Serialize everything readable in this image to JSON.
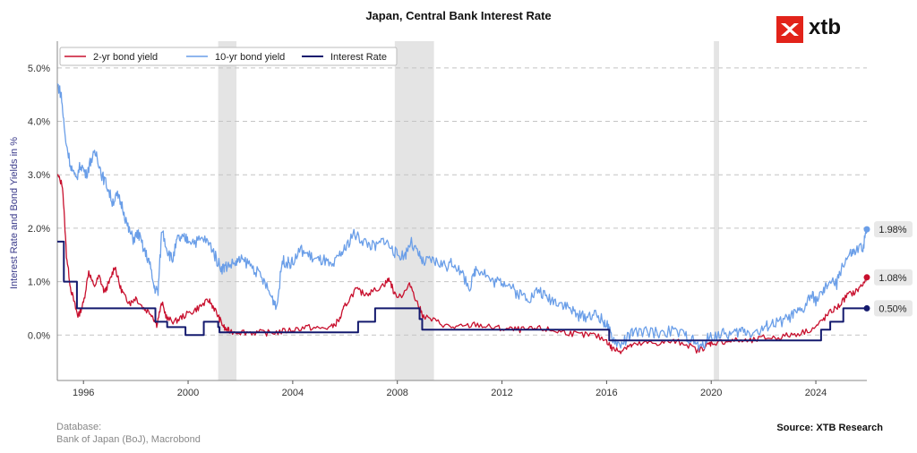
{
  "brand": {
    "logo_text": "xtb",
    "accent": "#e2231a"
  },
  "footer": {
    "db_label": "Database:",
    "db_sources": "Bank of Japan (BoJ), Macrobond",
    "source": "Source: XTB Research"
  },
  "chart_data": {
    "type": "line",
    "title": "Japan, Central Bank Interest Rate",
    "xlabel": "",
    "ylabel": "Interest Rate and Bond Yields in %",
    "xlim": [
      1995.0,
      2025.95
    ],
    "ylim": [
      -0.85,
      5.5
    ],
    "x_ticks": [
      1996,
      2000,
      2004,
      2008,
      2012,
      2016,
      2020,
      2024
    ],
    "y_ticks": [
      0,
      1,
      2,
      3,
      4,
      5
    ],
    "y_tick_labels": [
      "0.0%",
      "1.0%",
      "2.0%",
      "3.0%",
      "4.0%",
      "5.0%"
    ],
    "grid": "horizontal dashed",
    "legend": "top-left",
    "recessions": [
      [
        2001.15,
        2001.85
      ],
      [
        2007.9,
        2009.4
      ],
      [
        2020.1,
        2020.3
      ]
    ],
    "series": [
      {
        "name": "2-yr bond yield",
        "color": "#c8102e",
        "end_label": "1.08%",
        "points": [
          [
            1995.0,
            3.0
          ],
          [
            1995.2,
            2.8
          ],
          [
            1995.35,
            1.5
          ],
          [
            1995.5,
            0.9
          ],
          [
            1995.7,
            0.5
          ],
          [
            1995.8,
            0.35
          ],
          [
            1996.0,
            0.6
          ],
          [
            1996.2,
            1.2
          ],
          [
            1996.4,
            0.9
          ],
          [
            1996.6,
            1.1
          ],
          [
            1996.8,
            0.8
          ],
          [
            1997.0,
            1.0
          ],
          [
            1997.2,
            1.3
          ],
          [
            1997.4,
            0.9
          ],
          [
            1997.6,
            0.7
          ],
          [
            1997.8,
            0.6
          ],
          [
            1998.0,
            0.7
          ],
          [
            1998.3,
            0.5
          ],
          [
            1998.6,
            0.4
          ],
          [
            1998.8,
            0.2
          ],
          [
            1999.0,
            0.6
          ],
          [
            1999.2,
            0.3
          ],
          [
            1999.5,
            0.25
          ],
          [
            1999.8,
            0.35
          ],
          [
            2000.2,
            0.45
          ],
          [
            2000.5,
            0.55
          ],
          [
            2000.8,
            0.65
          ],
          [
            2001.0,
            0.5
          ],
          [
            2001.2,
            0.3
          ],
          [
            2001.4,
            0.12
          ],
          [
            2001.6,
            0.07
          ],
          [
            2002.0,
            0.06
          ],
          [
            2002.5,
            0.05
          ],
          [
            2003.0,
            0.04
          ],
          [
            2003.5,
            0.06
          ],
          [
            2004.0,
            0.1
          ],
          [
            2004.5,
            0.15
          ],
          [
            2005.0,
            0.12
          ],
          [
            2005.5,
            0.15
          ],
          [
            2005.8,
            0.3
          ],
          [
            2006.0,
            0.55
          ],
          [
            2006.4,
            0.85
          ],
          [
            2006.7,
            0.78
          ],
          [
            2007.0,
            0.8
          ],
          [
            2007.5,
            0.95
          ],
          [
            2007.7,
            1.05
          ],
          [
            2007.9,
            0.75
          ],
          [
            2008.2,
            0.75
          ],
          [
            2008.5,
            0.95
          ],
          [
            2008.8,
            0.55
          ],
          [
            2009.0,
            0.35
          ],
          [
            2009.5,
            0.25
          ],
          [
            2010.0,
            0.15
          ],
          [
            2010.5,
            0.15
          ],
          [
            2011.0,
            0.2
          ],
          [
            2011.5,
            0.15
          ],
          [
            2012.0,
            0.12
          ],
          [
            2012.5,
            0.1
          ],
          [
            2013.0,
            0.1
          ],
          [
            2013.5,
            0.12
          ],
          [
            2014.0,
            0.08
          ],
          [
            2014.5,
            0.05
          ],
          [
            2015.0,
            0.0
          ],
          [
            2015.5,
            0.0
          ],
          [
            2016.0,
            -0.1
          ],
          [
            2016.2,
            -0.25
          ],
          [
            2016.5,
            -0.3
          ],
          [
            2016.8,
            -0.2
          ],
          [
            2017.0,
            -0.2
          ],
          [
            2017.5,
            -0.15
          ],
          [
            2018.0,
            -0.15
          ],
          [
            2018.5,
            -0.12
          ],
          [
            2019.0,
            -0.15
          ],
          [
            2019.5,
            -0.3
          ],
          [
            2019.8,
            -0.2
          ],
          [
            2020.0,
            -0.15
          ],
          [
            2020.5,
            -0.12
          ],
          [
            2021.0,
            -0.1
          ],
          [
            2021.5,
            -0.12
          ],
          [
            2022.0,
            -0.05
          ],
          [
            2022.5,
            -0.05
          ],
          [
            2023.0,
            0.0
          ],
          [
            2023.5,
            0.05
          ],
          [
            2024.0,
            0.15
          ],
          [
            2024.3,
            0.3
          ],
          [
            2024.6,
            0.45
          ],
          [
            2024.9,
            0.55
          ],
          [
            2025.2,
            0.75
          ],
          [
            2025.5,
            0.8
          ],
          [
            2025.8,
            0.95
          ],
          [
            2025.95,
            1.08
          ]
        ]
      },
      {
        "name": "10-yr bond yield",
        "color": "#6a9ee8",
        "end_label": "1.98%",
        "points": [
          [
            1995.0,
            4.7
          ],
          [
            1995.15,
            4.5
          ],
          [
            1995.3,
            3.7
          ],
          [
            1995.5,
            3.2
          ],
          [
            1995.7,
            2.9
          ],
          [
            1995.9,
            3.2
          ],
          [
            1996.1,
            3.0
          ],
          [
            1996.3,
            3.3
          ],
          [
            1996.5,
            3.4
          ],
          [
            1996.7,
            3.0
          ],
          [
            1996.9,
            2.8
          ],
          [
            1997.1,
            2.5
          ],
          [
            1997.3,
            2.6
          ],
          [
            1997.5,
            2.4
          ],
          [
            1997.7,
            2.0
          ],
          [
            1997.9,
            1.8
          ],
          [
            1998.1,
            1.9
          ],
          [
            1998.3,
            1.6
          ],
          [
            1998.5,
            1.4
          ],
          [
            1998.7,
            0.9
          ],
          [
            1998.85,
            0.8
          ],
          [
            1999.0,
            2.0
          ],
          [
            1999.2,
            1.6
          ],
          [
            1999.4,
            1.4
          ],
          [
            1999.6,
            1.8
          ],
          [
            1999.8,
            1.8
          ],
          [
            2000.0,
            1.8
          ],
          [
            2000.3,
            1.75
          ],
          [
            2000.6,
            1.8
          ],
          [
            2000.9,
            1.65
          ],
          [
            2001.1,
            1.4
          ],
          [
            2001.3,
            1.25
          ],
          [
            2001.5,
            1.3
          ],
          [
            2001.8,
            1.35
          ],
          [
            2002.0,
            1.4
          ],
          [
            2002.3,
            1.35
          ],
          [
            2002.6,
            1.2
          ],
          [
            2002.9,
            1.0
          ],
          [
            2003.2,
            0.7
          ],
          [
            2003.4,
            0.55
          ],
          [
            2003.6,
            1.4
          ],
          [
            2003.8,
            1.35
          ],
          [
            2004.0,
            1.35
          ],
          [
            2004.3,
            1.6
          ],
          [
            2004.6,
            1.5
          ],
          [
            2004.9,
            1.4
          ],
          [
            2005.2,
            1.4
          ],
          [
            2005.5,
            1.25
          ],
          [
            2005.8,
            1.5
          ],
          [
            2006.0,
            1.6
          ],
          [
            2006.3,
            1.9
          ],
          [
            2006.6,
            1.8
          ],
          [
            2006.9,
            1.7
          ],
          [
            2007.2,
            1.65
          ],
          [
            2007.5,
            1.8
          ],
          [
            2007.8,
            1.6
          ],
          [
            2008.0,
            1.5
          ],
          [
            2008.3,
            1.5
          ],
          [
            2008.5,
            1.75
          ],
          [
            2008.8,
            1.5
          ],
          [
            2009.0,
            1.35
          ],
          [
            2009.3,
            1.4
          ],
          [
            2009.6,
            1.35
          ],
          [
            2009.9,
            1.3
          ],
          [
            2010.2,
            1.35
          ],
          [
            2010.5,
            1.1
          ],
          [
            2010.8,
            0.9
          ],
          [
            2011.0,
            1.25
          ],
          [
            2011.3,
            1.2
          ],
          [
            2011.6,
            1.0
          ],
          [
            2011.9,
            1.0
          ],
          [
            2012.2,
            1.0
          ],
          [
            2012.5,
            0.8
          ],
          [
            2012.8,
            0.75
          ],
          [
            2013.1,
            0.7
          ],
          [
            2013.4,
            0.85
          ],
          [
            2013.7,
            0.7
          ],
          [
            2014.0,
            0.65
          ],
          [
            2014.3,
            0.6
          ],
          [
            2014.6,
            0.5
          ],
          [
            2014.9,
            0.35
          ],
          [
            2015.2,
            0.35
          ],
          [
            2015.5,
            0.4
          ],
          [
            2015.8,
            0.3
          ],
          [
            2016.0,
            0.2
          ],
          [
            2016.2,
            -0.05
          ],
          [
            2016.5,
            -0.2
          ],
          [
            2016.8,
            -0.05
          ],
          [
            2017.0,
            0.05
          ],
          [
            2017.5,
            0.05
          ],
          [
            2018.0,
            0.05
          ],
          [
            2018.5,
            0.08
          ],
          [
            2019.0,
            0.0
          ],
          [
            2019.3,
            -0.1
          ],
          [
            2019.6,
            -0.25
          ],
          [
            2019.9,
            -0.05
          ],
          [
            2020.2,
            0.0
          ],
          [
            2020.5,
            0.02
          ],
          [
            2020.9,
            0.02
          ],
          [
            2021.2,
            0.1
          ],
          [
            2021.5,
            0.05
          ],
          [
            2021.9,
            0.07
          ],
          [
            2022.2,
            0.2
          ],
          [
            2022.5,
            0.22
          ],
          [
            2022.9,
            0.3
          ],
          [
            2023.2,
            0.4
          ],
          [
            2023.5,
            0.45
          ],
          [
            2023.8,
            0.75
          ],
          [
            2024.0,
            0.65
          ],
          [
            2024.3,
            0.8
          ],
          [
            2024.5,
            1.0
          ],
          [
            2024.8,
            0.95
          ],
          [
            2025.0,
            1.3
          ],
          [
            2025.3,
            1.5
          ],
          [
            2025.5,
            1.55
          ],
          [
            2025.8,
            1.65
          ],
          [
            2025.95,
            1.98
          ]
        ]
      },
      {
        "name": "Interest Rate",
        "color": "#141a6e",
        "end_label": "0.50%",
        "step": true,
        "points": [
          [
            1995.0,
            1.75
          ],
          [
            1995.25,
            1.0
          ],
          [
            1995.75,
            0.5
          ],
          [
            1998.75,
            0.25
          ],
          [
            1999.2,
            0.15
          ],
          [
            1999.9,
            0.0
          ],
          [
            2000.6,
            0.25
          ],
          [
            2001.15,
            0.15
          ],
          [
            2001.2,
            0.05
          ],
          [
            2006.5,
            0.25
          ],
          [
            2007.15,
            0.5
          ],
          [
            2008.85,
            0.3
          ],
          [
            2008.95,
            0.1
          ],
          [
            2016.1,
            -0.1
          ],
          [
            2024.2,
            0.1
          ],
          [
            2024.55,
            0.25
          ],
          [
            2025.05,
            0.5
          ],
          [
            2025.95,
            0.5
          ]
        ]
      }
    ]
  }
}
